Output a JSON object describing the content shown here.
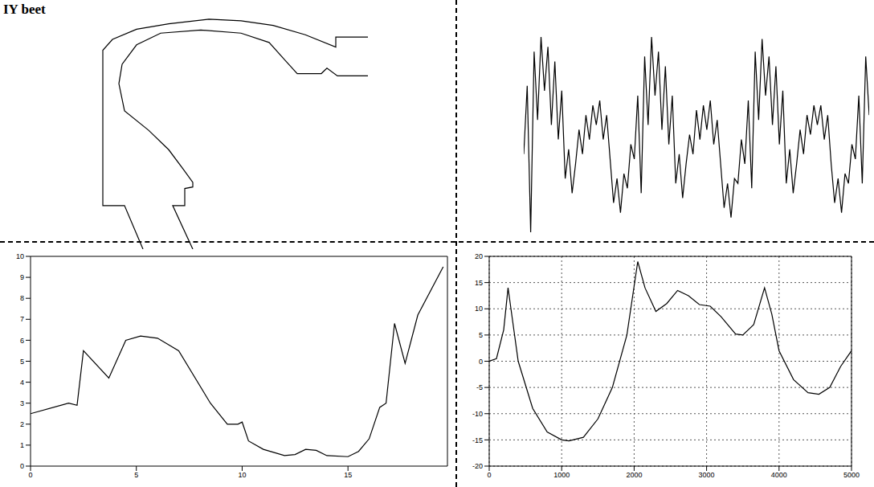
{
  "title": "IY beet",
  "chart_data": [
    {
      "type": "line",
      "tick_labels": false,
      "xlim": [
        120,
        470
      ],
      "ylim": [
        0,
        300
      ],
      "series": [
        {
          "color": "#000000",
          "x": [
            178,
            155,
            128,
            128,
            140,
            170,
            210,
            260,
            300,
            340,
            380,
            418,
            418,
            458
          ],
          "values": [
            0,
            56,
            56,
            256,
            270,
            283,
            290,
            296,
            294,
            288,
            276,
            260,
            273,
            273
          ]
        },
        {
          "color": "#000000",
          "x": [
            458,
            420,
            407,
            400,
            370,
            355,
            335,
            300,
            250,
            200,
            170,
            152,
            148,
            155,
            185,
            210,
            228,
            240,
            240,
            230,
            230,
            215,
            240
          ],
          "values": [
            223,
            223,
            233,
            226,
            226,
            243,
            266,
            278,
            282,
            278,
            263,
            238,
            213,
            178,
            153,
            128,
            103,
            86,
            80,
            78,
            56,
            56,
            0
          ]
        }
      ]
    },
    {
      "type": "line",
      "tick_labels": false,
      "color": "#000000",
      "xlim": [
        0,
        100
      ],
      "ylim": [
        -1.05,
        1.05
      ],
      "values": [
        -0.2,
        0.5,
        -1.0,
        0.85,
        0.15,
        1.0,
        0.45,
        0.9,
        0.1,
        0.75,
        -0.05,
        0.45,
        -0.45,
        -0.15,
        -0.6,
        -0.3,
        0.05,
        -0.2,
        0.2,
        -0.05,
        0.3,
        0.1,
        0.35,
        -0.05,
        0.2,
        -0.25,
        -0.7,
        -0.45,
        -0.8,
        -0.4,
        -0.55,
        -0.1,
        -0.25,
        0.4,
        -0.6,
        0.8,
        0.1,
        1.0,
        0.4,
        0.85,
        0.05,
        0.7,
        -0.1,
        0.4,
        -0.5,
        -0.2,
        -0.65,
        -0.3,
        0.0,
        -0.2,
        0.25,
        -0.05,
        0.3,
        0.05,
        0.35,
        -0.1,
        0.15,
        -0.3,
        -0.75,
        -0.5,
        -0.85,
        -0.45,
        -0.5,
        -0.05,
        -0.3,
        0.35,
        -0.55,
        0.85,
        0.15,
        0.98,
        0.4,
        0.8,
        0.1,
        0.7,
        -0.1,
        0.45,
        -0.5,
        -0.15,
        -0.6,
        -0.3,
        0.05,
        -0.2,
        0.2,
        0.0,
        0.3,
        0.1,
        0.3,
        -0.05,
        0.2,
        -0.3,
        -0.7,
        -0.45,
        -0.8,
        -0.4,
        -0.5,
        -0.1,
        -0.25,
        0.4,
        -0.5,
        0.8,
        0.2
      ]
    },
    {
      "type": "line",
      "color": "#000000",
      "xlim": [
        0,
        19.7
      ],
      "ylim": [
        0,
        10
      ],
      "xticks": [
        0,
        5,
        10,
        15
      ],
      "yticks": [
        0,
        1,
        2,
        3,
        4,
        5,
        6,
        7,
        8,
        9,
        10
      ],
      "x": [
        0,
        1.8,
        2.2,
        2.5,
        3.7,
        4.5,
        5.2,
        6,
        7,
        8.5,
        9.3,
        9.8,
        10,
        10.3,
        11,
        12,
        12.5,
        13,
        13.5,
        14,
        15,
        15.5,
        16,
        16.5,
        16.8,
        17.2,
        17.7,
        18.3,
        19.5
      ],
      "values": [
        2.5,
        3,
        2.9,
        5.5,
        4.2,
        6,
        6.2,
        6.1,
        5.5,
        3,
        2,
        2,
        2.1,
        1.2,
        0.8,
        0.5,
        0.55,
        0.8,
        0.75,
        0.5,
        0.45,
        0.7,
        1.3,
        2.8,
        3,
        6.8,
        4.9,
        7.2,
        9.5
      ]
    },
    {
      "type": "line",
      "color": "#000000",
      "grid": true,
      "xlim": [
        0,
        5000
      ],
      "ylim": [
        -20,
        20
      ],
      "xticks": [
        0,
        1000,
        2000,
        3000,
        4000,
        5000
      ],
      "yticks": [
        -20,
        -15,
        -10,
        -5,
        0,
        5,
        10,
        15,
        20
      ],
      "x": [
        0,
        100,
        200,
        260,
        300,
        400,
        600,
        800,
        1000,
        1100,
        1300,
        1500,
        1700,
        1900,
        2050,
        2150,
        2300,
        2450,
        2600,
        2750,
        2900,
        3050,
        3200,
        3400,
        3500,
        3650,
        3800,
        3900,
        4000,
        4200,
        4400,
        4550,
        4700,
        4850,
        5000
      ],
      "values": [
        0,
        0.5,
        6,
        14,
        10,
        0,
        -9,
        -13.5,
        -15,
        -15.2,
        -14.5,
        -11,
        -5,
        5,
        19,
        14,
        9.5,
        11,
        13.5,
        12.5,
        10.8,
        10.5,
        8.5,
        5.2,
        5,
        7,
        14,
        9,
        2,
        -3.5,
        -6,
        -6.3,
        -5,
        -1,
        2
      ]
    }
  ]
}
